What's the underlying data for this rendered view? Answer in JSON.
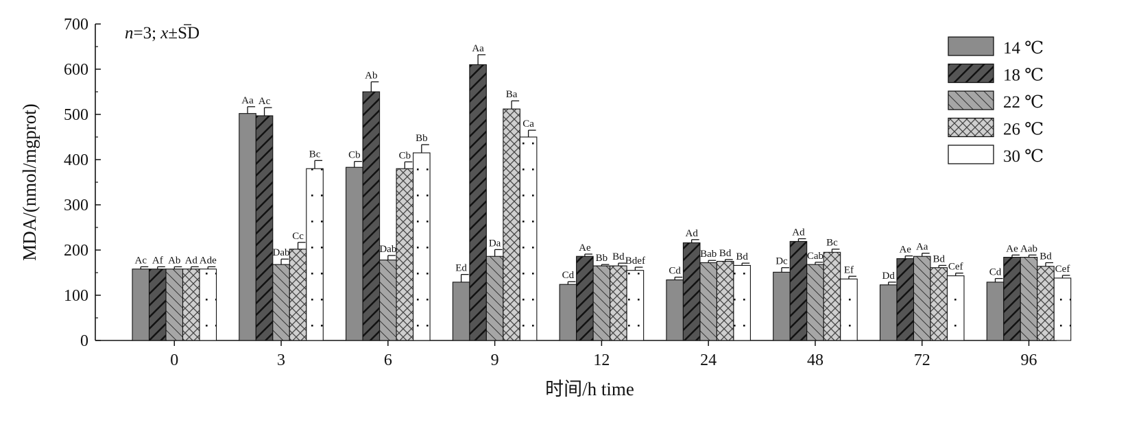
{
  "chart_data": {
    "type": "bar",
    "title": "",
    "xlabel": "时间/h time",
    "ylabel": "MDA/(nmol/mgprot)",
    "ylim": [
      0,
      700
    ],
    "yticks": [
      "0",
      "100",
      "200",
      "300",
      "400",
      "500",
      "600",
      "700"
    ],
    "categories": [
      "0",
      "3",
      "6",
      "9",
      "12",
      "24",
      "48",
      "72",
      "96"
    ],
    "note": {
      "n": "n",
      "eq": "=3; ",
      "x": "x",
      "pm": "±SD"
    },
    "legend_position": "top-right",
    "grid": false,
    "series": [
      {
        "name": "14 ℃",
        "fill": "#8c8c8c",
        "pattern": "solid",
        "values": [
          158,
          502,
          383,
          129,
          124,
          134,
          151,
          123,
          129
        ],
        "errors": [
          5,
          15,
          13,
          17,
          6,
          6,
          10,
          6,
          8
        ],
        "labels": [
          "Ac",
          "Aa",
          "Cb",
          "Ed",
          "Cd",
          "Cd",
          "Dc",
          "Dd",
          "Cd"
        ]
      },
      {
        "name": "18 ℃",
        "fill": "#555555",
        "pattern": "forward-diagonal",
        "values": [
          158,
          497,
          550,
          610,
          186,
          216,
          219,
          181,
          184
        ],
        "errors": [
          5,
          18,
          22,
          22,
          5,
          7,
          6,
          6,
          5
        ],
        "labels": [
          "Af",
          "Ac",
          "Ab",
          "Aa",
          "Ae",
          "Ad",
          "Ad",
          "Ae",
          "Ae"
        ]
      },
      {
        "name": "22 ℃",
        "fill": "#a6a6a6",
        "pattern": "backward-diagonal",
        "values": [
          158,
          168,
          178,
          186,
          165,
          172,
          168,
          186,
          184
        ],
        "errors": [
          5,
          12,
          10,
          15,
          3,
          5,
          5,
          7,
          5
        ],
        "labels": [
          "Ab",
          "Dab",
          "Dab",
          "Da",
          "Bb",
          "Bab",
          "Cab",
          "Aa",
          "Aab"
        ]
      },
      {
        "name": "26 ℃",
        "fill": "#cfcfcf",
        "pattern": "crosshatch",
        "values": [
          158,
          202,
          380,
          512,
          165,
          175,
          195,
          161,
          164
        ],
        "errors": [
          5,
          15,
          15,
          18,
          6,
          4,
          7,
          5,
          8
        ],
        "labels": [
          "Ad",
          "Cc",
          "Cb",
          "Ba",
          "Bd",
          "Bd",
          "Bc",
          "Bd",
          "Bd"
        ]
      },
      {
        "name": "30 ℃",
        "fill": "#ffffff",
        "pattern": "dots",
        "values": [
          158,
          380,
          415,
          450,
          155,
          166,
          136,
          143,
          138
        ],
        "errors": [
          5,
          18,
          18,
          15,
          7,
          5,
          6,
          6,
          6
        ],
        "labels": [
          "Ade",
          "Bc",
          "Bb",
          "Ca",
          "Bdef",
          "Bd",
          "Ef",
          "Cef",
          "Cef"
        ]
      }
    ]
  }
}
